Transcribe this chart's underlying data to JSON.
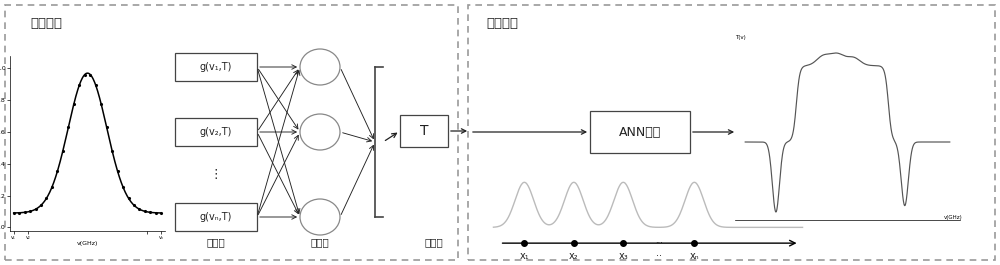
{
  "title_train": "训练阶段",
  "title_test": "测试阶段",
  "input_labels": [
    "g(v₁,T)",
    "g(v₂,T)",
    "g(vₙ,T)"
  ],
  "ann_label": "ANN网络",
  "layer_labels": [
    "输入层",
    "隐藏层",
    "输出层"
  ],
  "text_color": "#222222",
  "box_edge_color": "#444444",
  "arrow_color": "#222222",
  "dash_color": "#999999",
  "circle_edge": "#888888",
  "signal_color": "#555555",
  "bump_color": "#aaaaaa",
  "inset_bg": "#ffffff"
}
